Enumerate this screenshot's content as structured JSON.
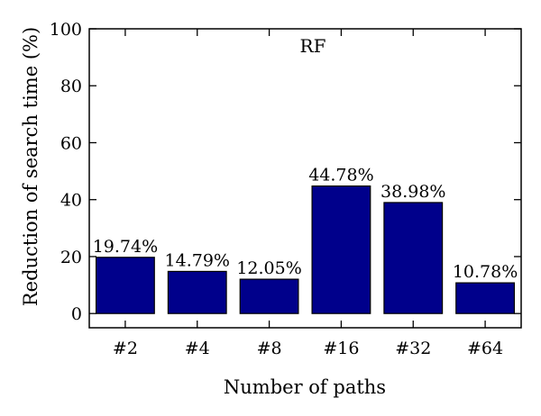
{
  "chart_data": {
    "type": "bar",
    "title": "RF",
    "xlabel": "Number of paths",
    "ylabel": "Reduction of search time (%)",
    "categories": [
      "#2",
      "#4",
      "#8",
      "#16",
      "#32",
      "#64"
    ],
    "values": [
      19.74,
      14.79,
      12.05,
      44.78,
      38.98,
      10.78
    ],
    "data_labels": [
      "19.74%",
      "14.79%",
      "12.05%",
      "44.78%",
      "38.98%",
      "10.78%"
    ],
    "ylim": [
      -5,
      100
    ],
    "yticks": [
      0,
      20,
      40,
      60,
      80,
      100
    ],
    "grid": false,
    "colors": {
      "bar_fill": "#00008b",
      "bar_stroke": "#000000"
    }
  }
}
